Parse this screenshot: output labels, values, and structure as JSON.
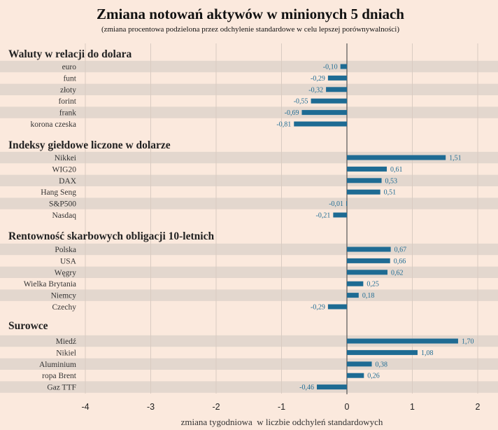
{
  "chart_data": {
    "type": "bar",
    "orientation": "horizontal",
    "title": "Zmiana notowań aktywów w minionych 5 dniach",
    "subtitle": "(zmiana procentowa podzielona przez odchylenie standardowe w celu lepszej porównywalności)",
    "xlabel": "zmiana tygodniowa  w liczbie odchyleń standardowych",
    "xlim": [
      -4,
      2
    ],
    "x_ticks": [
      -4,
      -3,
      -2,
      -1,
      0,
      1,
      2
    ],
    "grid": "vertical",
    "groups": [
      {
        "name": "Waluty w relacji do dolara",
        "items": [
          {
            "label": "euro",
            "value": -0.1,
            "value_label": "-0,10"
          },
          {
            "label": "funt",
            "value": -0.29,
            "value_label": "-0,29"
          },
          {
            "label": "złoty",
            "value": -0.32,
            "value_label": "-0,32"
          },
          {
            "label": "forint",
            "value": -0.55,
            "value_label": "-0,55"
          },
          {
            "label": "frank",
            "value": -0.69,
            "value_label": "-0,69"
          },
          {
            "label": "korona czeska",
            "value": -0.81,
            "value_label": "-0,81"
          }
        ]
      },
      {
        "name": "Indeksy giełdowe liczone w dolarze",
        "items": [
          {
            "label": "Nikkei",
            "value": 1.51,
            "value_label": "1,51"
          },
          {
            "label": "WIG20",
            "value": 0.61,
            "value_label": "0,61"
          },
          {
            "label": "DAX",
            "value": 0.53,
            "value_label": "0,53"
          },
          {
            "label": "Hang Seng",
            "value": 0.51,
            "value_label": "0,51"
          },
          {
            "label": "S&P500",
            "value": -0.01,
            "value_label": "-0,01"
          },
          {
            "label": "Nasdaq",
            "value": -0.21,
            "value_label": "-0,21"
          }
        ]
      },
      {
        "name": "Rentowność skarbowych obligacji 10-letnich",
        "items": [
          {
            "label": "Polska",
            "value": 0.67,
            "value_label": "0,67"
          },
          {
            "label": "USA",
            "value": 0.66,
            "value_label": "0,66"
          },
          {
            "label": "Węgry",
            "value": 0.62,
            "value_label": "0,62"
          },
          {
            "label": "Wielka Brytania",
            "value": 0.25,
            "value_label": "0,25"
          },
          {
            "label": "Niemcy",
            "value": 0.18,
            "value_label": "0,18"
          },
          {
            "label": "Czechy",
            "value": -0.29,
            "value_label": "-0,29"
          }
        ]
      },
      {
        "name": "Surowce",
        "items": [
          {
            "label": "Miedź",
            "value": 1.7,
            "value_label": "1,70"
          },
          {
            "label": "Nikiel",
            "value": 1.08,
            "value_label": "1,08"
          },
          {
            "label": "Aluminium",
            "value": 0.38,
            "value_label": "0,38"
          },
          {
            "label": "ropa Brent",
            "value": 0.26,
            "value_label": "0,26"
          },
          {
            "label": "Gaz TTF",
            "value": -0.46,
            "value_label": "-0,46"
          }
        ]
      }
    ],
    "colors": {
      "background": "#fbe9dd",
      "bar": "#1e6b93",
      "value_label": "#1e6b93",
      "stripe": "#e3d7ce",
      "grid": "#d9cbc1",
      "zero_axis": "#555555"
    }
  }
}
